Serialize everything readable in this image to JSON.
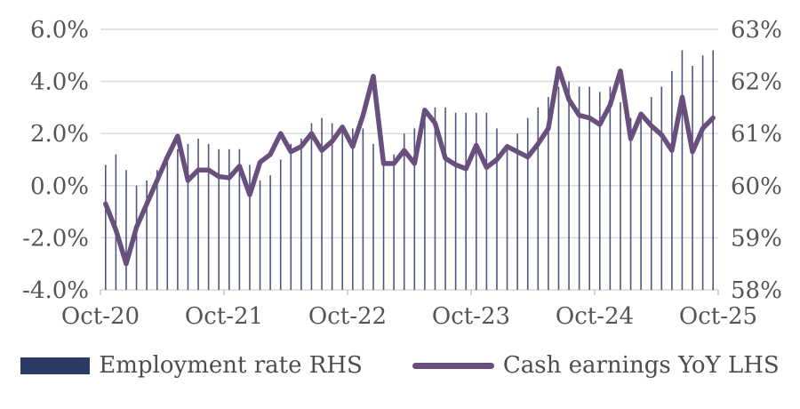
{
  "chart_data": {
    "type": "combo-bar-line",
    "title": "",
    "x_months": [
      "Oct-20",
      "Nov-20",
      "Dec-20",
      "Jan-21",
      "Feb-21",
      "Mar-21",
      "Apr-21",
      "May-21",
      "Jun-21",
      "Jul-21",
      "Aug-21",
      "Sep-21",
      "Oct-21",
      "Nov-21",
      "Dec-21",
      "Jan-22",
      "Feb-22",
      "Mar-22",
      "Apr-22",
      "May-22",
      "Jun-22",
      "Jul-22",
      "Aug-22",
      "Sep-22",
      "Oct-22",
      "Nov-22",
      "Dec-22",
      "Jan-23",
      "Feb-23",
      "Mar-23",
      "Apr-23",
      "May-23",
      "Jun-23",
      "Jul-23",
      "Aug-23",
      "Sep-23",
      "Oct-23",
      "Nov-23",
      "Dec-23",
      "Jan-24",
      "Feb-24",
      "Mar-24",
      "Apr-24",
      "May-24",
      "Jun-24",
      "Jul-24",
      "Aug-24",
      "Sep-24",
      "Oct-24",
      "Nov-24",
      "Dec-24",
      "Jan-25",
      "Feb-25",
      "Mar-25",
      "Apr-25",
      "May-25",
      "Jun-25",
      "Jul-25",
      "Aug-25",
      "Sep-25"
    ],
    "x_tick_labels": [
      "Oct-20",
      "Oct-21",
      "Oct-22",
      "Oct-23",
      "Oct-24",
      "Oct-25"
    ],
    "series": [
      {
        "name": "Employment rate RHS",
        "type": "bar",
        "axis": "right",
        "color": "#2e3a66",
        "values": [
          60.4,
          60.6,
          60.3,
          60.0,
          60.1,
          60.3,
          60.5,
          60.7,
          60.8,
          60.9,
          60.8,
          60.7,
          60.7,
          60.7,
          60.4,
          60.1,
          60.2,
          60.5,
          60.8,
          60.9,
          61.2,
          61.3,
          61.2,
          61.1,
          61.1,
          61.1,
          60.8,
          60.5,
          60.6,
          61.0,
          61.1,
          61.3,
          61.5,
          61.5,
          61.4,
          61.4,
          61.4,
          61.4,
          61.1,
          60.8,
          61.0,
          61.3,
          61.5,
          61.7,
          61.9,
          62.0,
          61.9,
          61.9,
          61.8,
          61.9,
          61.6,
          61.3,
          61.4,
          61.7,
          61.9,
          62.2,
          62.6,
          62.3,
          62.5,
          62.6
        ]
      },
      {
        "name": "Cash earnings YoY LHS",
        "type": "line",
        "axis": "left",
        "color": "#684f7d",
        "values": [
          -0.7,
          -1.7,
          -3.0,
          -1.6,
          -0.7,
          0.2,
          1.1,
          1.9,
          0.2,
          0.6,
          0.6,
          0.35,
          0.3,
          0.75,
          -0.35,
          0.9,
          1.2,
          2.0,
          1.3,
          1.5,
          2.0,
          1.35,
          1.7,
          2.25,
          1.5,
          2.7,
          4.2,
          0.85,
          0.85,
          1.35,
          0.85,
          2.9,
          2.4,
          1.05,
          0.8,
          0.65,
          1.55,
          0.7,
          1.0,
          1.5,
          1.3,
          1.1,
          1.6,
          2.2,
          4.5,
          3.3,
          2.7,
          2.6,
          2.35,
          3.1,
          4.4,
          1.8,
          2.75,
          2.3,
          1.95,
          1.35,
          3.4,
          1.3,
          2.2,
          2.6
        ]
      }
    ],
    "left_axis": {
      "tick_labels": [
        "6.0%",
        "4.0%",
        "2.0%",
        "0.0%",
        "-2.0%",
        "-4.0%"
      ],
      "tick_values": [
        6,
        4,
        2,
        0,
        -2,
        -4
      ],
      "min": -4,
      "max": 6
    },
    "right_axis": {
      "tick_labels": [
        "63%",
        "62%",
        "61%",
        "60%",
        "59%",
        "58%"
      ],
      "tick_values": [
        63,
        62,
        61,
        60,
        59,
        58
      ],
      "min": 58,
      "max": 63
    },
    "grid": true,
    "legend_position": "bottom",
    "colors": {
      "gridline": "#d9d9d9",
      "axis_tick": "#bfbfbf",
      "axis_text": "#555555"
    }
  },
  "legend": {
    "items": [
      {
        "label": "Employment rate RHS",
        "color": "#2e3a66"
      },
      {
        "label": "Cash earnings YoY LHS",
        "color": "#684f7d"
      }
    ]
  }
}
